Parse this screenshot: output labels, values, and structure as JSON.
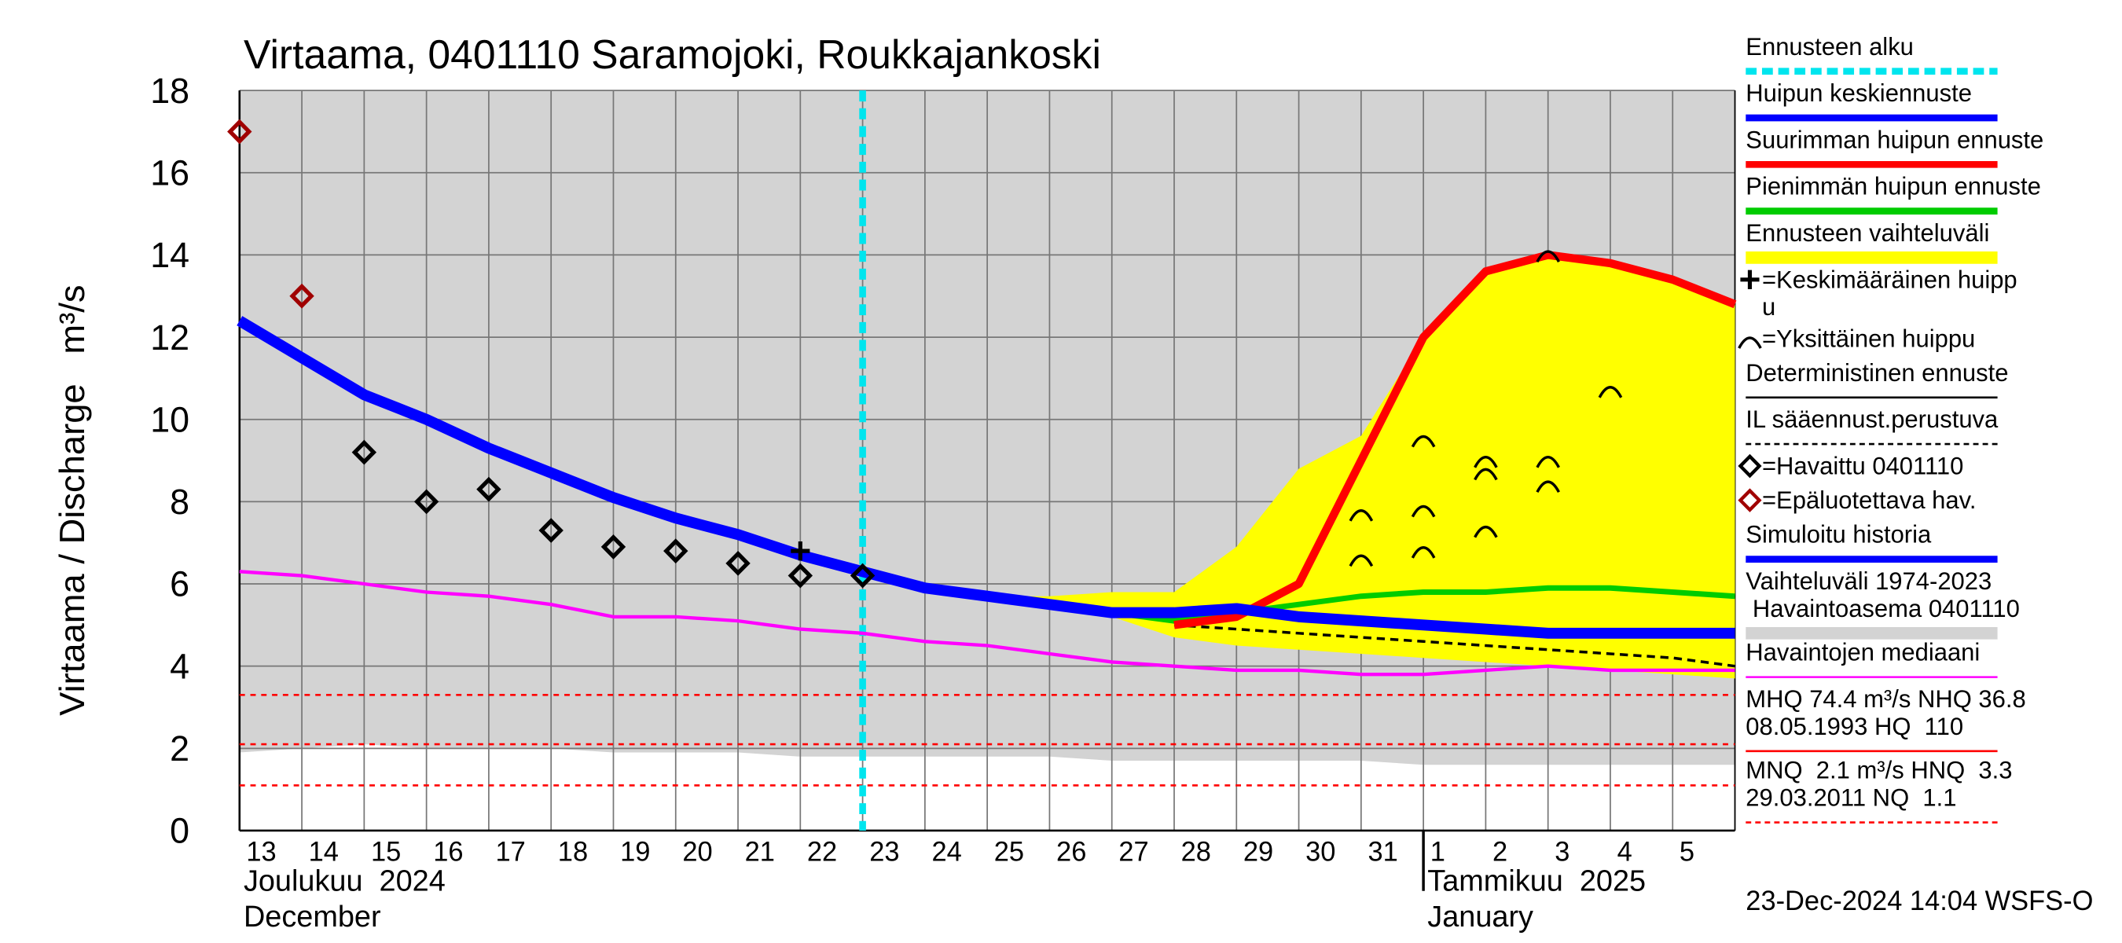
{
  "chart_data": {
    "type": "line",
    "title": "Virtaama, 0401110 Saramojoki, Roukkajankoski",
    "y_label": "Virtaama / Discharge   m³/s",
    "footer": "23-Dec-2024 14:04 WSFS-O",
    "months": [
      {
        "label": "Joulukuu  2024",
        "label2": "December",
        "at": 0
      },
      {
        "label": "Tammikuu  2025",
        "label2": "January",
        "at": 19
      }
    ],
    "categories": [
      "13",
      "14",
      "15",
      "16",
      "17",
      "18",
      "19",
      "20",
      "21",
      "22",
      "23",
      "24",
      "25",
      "26",
      "27",
      "28",
      "29",
      "30",
      "31",
      "1",
      "2",
      "3",
      "4",
      "5",
      null
    ],
    "ylim": [
      0,
      18
    ],
    "yticks": [
      0,
      2,
      4,
      6,
      8,
      10,
      12,
      14,
      16,
      18
    ],
    "grid": true,
    "forecast_start": 10,
    "forecast_start_color": "#00e5ee",
    "range": {
      "color": "#d3d3d3",
      "values": [
        18,
        18,
        18,
        18,
        18,
        18,
        18,
        18,
        18,
        18,
        18,
        18,
        18,
        18,
        18,
        18,
        18,
        18,
        18,
        18,
        18,
        18,
        18,
        18,
        18
      ],
      "low": [
        1.9,
        2.0,
        2.1,
        2.0,
        2.0,
        2.0,
        1.9,
        1.9,
        1.9,
        1.8,
        1.8,
        1.8,
        1.8,
        1.8,
        1.7,
        1.7,
        1.7,
        1.7,
        1.7,
        1.6,
        1.6,
        1.6,
        1.6,
        1.6,
        1.6
      ]
    },
    "band": {
      "color": "#ffff00",
      "values": [
        null,
        null,
        null,
        null,
        null,
        null,
        null,
        null,
        null,
        null,
        6.2,
        5.9,
        5.7,
        5.7,
        5.8,
        5.8,
        6.9,
        8.8,
        9.6,
        12.0,
        13.6,
        14.0,
        13.8,
        13.4,
        12.8
      ],
      "low": [
        null,
        null,
        null,
        null,
        null,
        null,
        null,
        null,
        null,
        null,
        6.2,
        5.9,
        5.6,
        5.4,
        5.2,
        4.7,
        4.5,
        4.4,
        4.3,
        4.2,
        4.1,
        4.0,
        3.9,
        3.8,
        3.7
      ]
    },
    "series": [
      {
        "color": "#ff00ff",
        "width": 2.5,
        "values": [
          6.3,
          6.2,
          6.0,
          5.8,
          5.7,
          5.5,
          5.2,
          5.2,
          5.1,
          4.9,
          4.8,
          4.6,
          4.5,
          4.3,
          4.1,
          4.0,
          3.9,
          3.9,
          3.8,
          3.8,
          3.9,
          4.0,
          3.9,
          3.9,
          3.9
        ]
      },
      {
        "color": "#000000",
        "width": 2,
        "dash": true,
        "values": [
          null,
          null,
          null,
          null,
          null,
          null,
          null,
          null,
          null,
          null,
          null,
          null,
          null,
          null,
          null,
          5.0,
          4.9,
          4.8,
          4.7,
          4.6,
          4.5,
          4.4,
          4.3,
          4.2,
          4.0
        ]
      },
      {
        "color": "#00cc00",
        "width": 4,
        "values": [
          null,
          null,
          null,
          null,
          null,
          null,
          null,
          null,
          null,
          null,
          null,
          null,
          null,
          null,
          5.3,
          5.1,
          5.3,
          5.5,
          5.7,
          5.8,
          5.8,
          5.9,
          5.9,
          5.8,
          5.7
        ]
      },
      {
        "color": "#ff0000",
        "width": 6,
        "values": [
          null,
          null,
          null,
          null,
          null,
          null,
          null,
          null,
          null,
          null,
          null,
          null,
          null,
          null,
          null,
          5.0,
          5.2,
          6.0,
          9.0,
          12.0,
          13.6,
          14.0,
          13.8,
          13.4,
          12.8
        ]
      },
      {
        "color": "#0000ff",
        "width": 8,
        "values": [
          12.4,
          11.5,
          10.6,
          10.0,
          9.3,
          8.7,
          8.1,
          7.6,
          7.2,
          6.7,
          6.3,
          5.9,
          5.7,
          5.5,
          5.3,
          5.3,
          5.4,
          5.2,
          5.1,
          5.0,
          4.9,
          4.8,
          4.8,
          4.8,
          4.8
        ]
      }
    ],
    "observed": {
      "color": "#000000",
      "values": [
        null,
        null,
        9.2,
        8.0,
        8.3,
        7.3,
        6.9,
        6.8,
        6.5,
        6.2,
        6.2,
        null,
        null,
        null,
        null,
        null,
        null,
        null,
        null,
        null,
        null,
        null,
        null,
        null,
        null
      ]
    },
    "unreliable": {
      "color": "#a00000",
      "values": [
        17.0,
        13.0,
        null,
        null,
        null,
        null,
        null,
        null,
        null,
        null,
        null,
        null,
        null,
        null,
        null,
        null,
        null,
        null,
        null,
        null,
        null,
        null,
        null,
        null,
        null
      ]
    },
    "peaks": {
      "x": [
        18,
        18,
        19,
        19,
        19,
        20,
        20,
        20,
        21,
        21,
        22,
        21
      ],
      "values": [
        7.7,
        6.6,
        9.5,
        7.8,
        6.8,
        9.0,
        8.7,
        7.3,
        9.0,
        8.4,
        10.7,
        14.0
      ]
    },
    "mean_peak": {
      "x": 9,
      "value": 6.8
    },
    "ref_lines": {
      "color": "#ff0000",
      "values": [
        3.3,
        2.1,
        1.1
      ]
    },
    "legend": [
      {
        "label": [
          "Ennusteen alku"
        ],
        "swatch": "dash",
        "color": "#00e5ee"
      },
      {
        "label": [
          "Huipun keskiennuste"
        ],
        "swatch": "line",
        "color": "#0000ff"
      },
      {
        "label": [
          "Suurimman huipun ennuste"
        ],
        "swatch": "line",
        "color": "#ff0000"
      },
      {
        "label": [
          "Pienimmän huipun ennuste"
        ],
        "swatch": "line",
        "color": "#00cc00"
      },
      {
        "label": [
          "Ennusteen vaihteluväli"
        ],
        "swatch": "band",
        "color": "#ffff00"
      },
      {
        "label": [
          "=Keskimääräinen huipp",
          "u"
        ],
        "swatch": "cross",
        "color": "#000000"
      },
      {
        "label": [
          "=Yksittäinen huippu"
        ],
        "swatch": "peak",
        "color": "#000000"
      },
      {
        "label": [
          "Deterministinen ennuste"
        ],
        "swatch": "thin",
        "color": "#000000"
      },
      {
        "label": [
          "IL sääennust.perustuva"
        ],
        "swatch": "thindash",
        "color": "#000000"
      },
      {
        "label": [
          "=Havaittu 0401110"
        ],
        "swatch": "diamond",
        "color": "#000000"
      },
      {
        "label": [
          "=Epäluotettava hav."
        ],
        "swatch": "diamond",
        "color": "#a00000"
      },
      {
        "label": [
          "Simuloitu historia"
        ],
        "swatch": "line",
        "color": "#0000ff"
      },
      {
        "label": [
          "Vaihteluväli 1974-2023",
          " Havaintoasema 0401110"
        ],
        "swatch": "band",
        "color": "#d3d3d3"
      },
      {
        "label": [
          "Havaintojen mediaani"
        ],
        "swatch": "thin",
        "color": "#ff00ff"
      },
      {
        "label": [
          "MHQ 74.4 m³/s NHQ 36.8",
          "08.05.1993 HQ  110"
        ],
        "swatch": "thin",
        "color": "#ff0000"
      },
      {
        "label": [
          "MNQ  2.1 m³/s HNQ  3.3",
          "29.03.2011 NQ  1.1"
        ],
        "swatch": "thindash",
        "color": "#ff0000"
      }
    ]
  }
}
